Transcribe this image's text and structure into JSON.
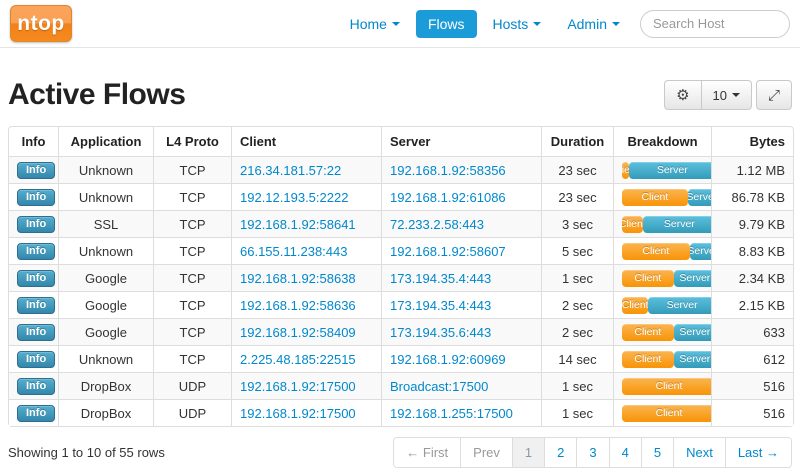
{
  "navbar": {
    "logo_text": "ntop",
    "items": [
      {
        "label": "Home",
        "caret": true,
        "active": false
      },
      {
        "label": "Flows",
        "caret": false,
        "active": true
      },
      {
        "label": "Hosts",
        "caret": true,
        "active": false
      },
      {
        "label": "Admin",
        "caret": true,
        "active": false
      }
    ],
    "search_placeholder": "Search Host"
  },
  "page": {
    "title": "Active Flows",
    "toolbar": {
      "gear_icon": "⚙",
      "page_size": "10",
      "expand_icon": "⤢"
    }
  },
  "table": {
    "columns": [
      {
        "label": "Info",
        "align": "c-center"
      },
      {
        "label": "Application",
        "align": "c-center"
      },
      {
        "label": "L4 Proto",
        "align": "c-center"
      },
      {
        "label": "Client",
        "align": "c-left"
      },
      {
        "label": "Server",
        "align": "c-left"
      },
      {
        "label": "Duration",
        "align": "c-center"
      },
      {
        "label": "Breakdown",
        "align": "c-center"
      },
      {
        "label": "Bytes",
        "align": "c-right"
      }
    ],
    "info_label": "Info",
    "breakdown_labels": {
      "client": "Client",
      "server": "Server"
    },
    "rows": [
      {
        "application": "Unknown",
        "proto": "TCP",
        "client": "216.34.181.57:22",
        "server": "192.168.1.92:58356",
        "duration": "23 sec",
        "client_pct": 7,
        "server_pct": 93,
        "bytes": "1.12 MB"
      },
      {
        "application": "Unknown",
        "proto": "TCP",
        "client": "192.12.193.5:2222",
        "server": "192.168.1.92:61086",
        "duration": "23 sec",
        "client_pct": 70,
        "server_pct": 30,
        "bytes": "86.78 KB"
      },
      {
        "application": "SSL",
        "proto": "TCP",
        "client": "192.168.1.92:58641",
        "server": "72.233.2.58:443",
        "duration": "3 sec",
        "client_pct": 22,
        "server_pct": 78,
        "bytes": "9.79 KB"
      },
      {
        "application": "Unknown",
        "proto": "TCP",
        "client": "66.155.11.238:443",
        "server": "192.168.1.92:58607",
        "duration": "5 sec",
        "client_pct": 72,
        "server_pct": 28,
        "bytes": "8.83 KB"
      },
      {
        "application": "Google",
        "proto": "TCP",
        "client": "192.168.1.92:58638",
        "server": "173.194.35.4:443",
        "duration": "1 sec",
        "client_pct": 55,
        "server_pct": 45,
        "bytes": "2.34 KB"
      },
      {
        "application": "Google",
        "proto": "TCP",
        "client": "192.168.1.92:58636",
        "server": "173.194.35.4:443",
        "duration": "2 sec",
        "client_pct": 28,
        "server_pct": 72,
        "bytes": "2.15 KB"
      },
      {
        "application": "Google",
        "proto": "TCP",
        "client": "192.168.1.92:58409",
        "server": "173.194.35.6:443",
        "duration": "2 sec",
        "client_pct": 55,
        "server_pct": 45,
        "bytes": "633"
      },
      {
        "application": "Unknown",
        "proto": "TCP",
        "client": "2.225.48.185:22515",
        "server": "192.168.1.92:60969",
        "duration": "14 sec",
        "client_pct": 55,
        "server_pct": 45,
        "bytes": "612"
      },
      {
        "application": "DropBox",
        "proto": "UDP",
        "client": "192.168.1.92:17500",
        "server": "Broadcast:17500",
        "duration": "1 sec",
        "client_pct": 100,
        "server_pct": 0,
        "bytes": "516"
      },
      {
        "application": "DropBox",
        "proto": "UDP",
        "client": "192.168.1.92:17500",
        "server": "192.168.1.255:17500",
        "duration": "1 sec",
        "client_pct": 100,
        "server_pct": 0,
        "bytes": "516"
      }
    ]
  },
  "footer": {
    "showing": "Showing 1 to 10 of 55 rows",
    "pagination": [
      {
        "label": "← First",
        "state": "disabled"
      },
      {
        "label": "Prev",
        "state": "disabled"
      },
      {
        "label": "1",
        "state": "active"
      },
      {
        "label": "2",
        "state": "link"
      },
      {
        "label": "3",
        "state": "link"
      },
      {
        "label": "4",
        "state": "link"
      },
      {
        "label": "5",
        "state": "link"
      },
      {
        "label": "Next",
        "state": "link"
      },
      {
        "label": "Last →",
        "state": "link"
      }
    ]
  },
  "colors": {
    "link_blue": "#0088cc",
    "active_nav_blue": "#1b9cd9",
    "client_orange": "#f89406",
    "server_blue": "#339bb9",
    "info_button_blue": "#3a87ad",
    "logo_orange": "#f58a1d"
  }
}
